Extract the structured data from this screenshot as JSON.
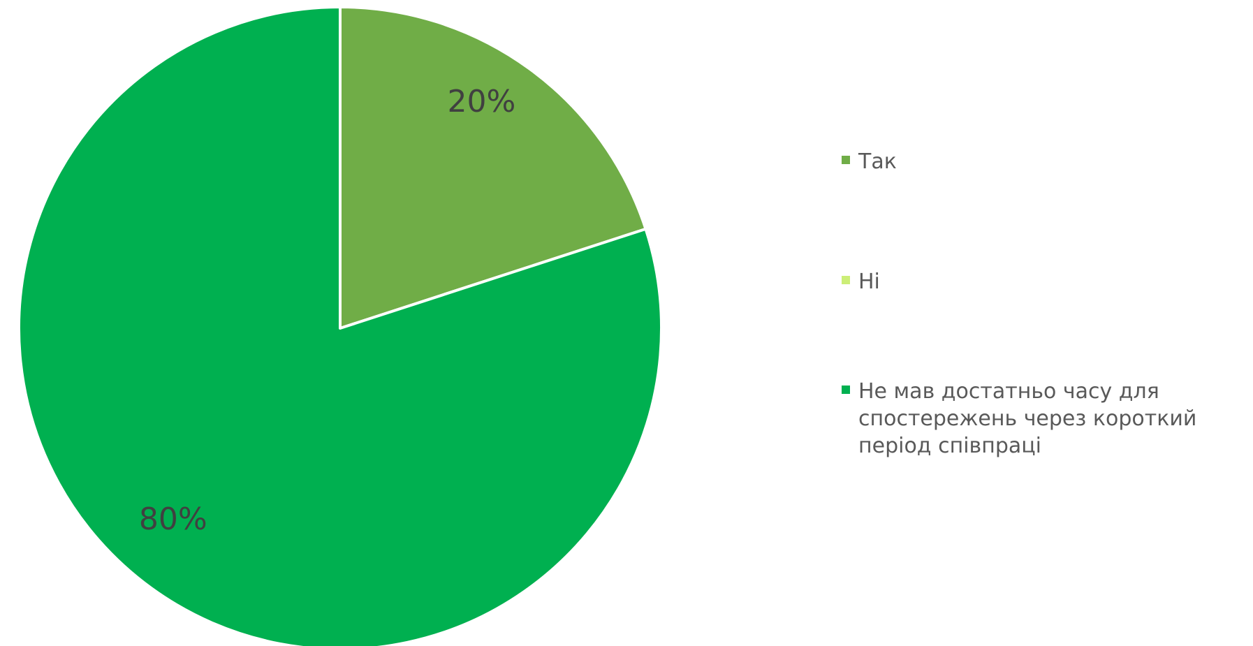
{
  "chart_data": {
    "type": "pie",
    "title": "",
    "series": [
      {
        "values": [
          20,
          0,
          80
        ]
      }
    ],
    "categories": [
      "Так",
      "Ні",
      "Не мав достатньо часу для\nспостережень через короткий\nперіод співпраці"
    ],
    "data_labels": [
      "20%",
      "",
      "80%"
    ],
    "colors": [
      "#70AD47",
      "#CCEE77",
      "#00B050"
    ],
    "legend_position": "right"
  }
}
